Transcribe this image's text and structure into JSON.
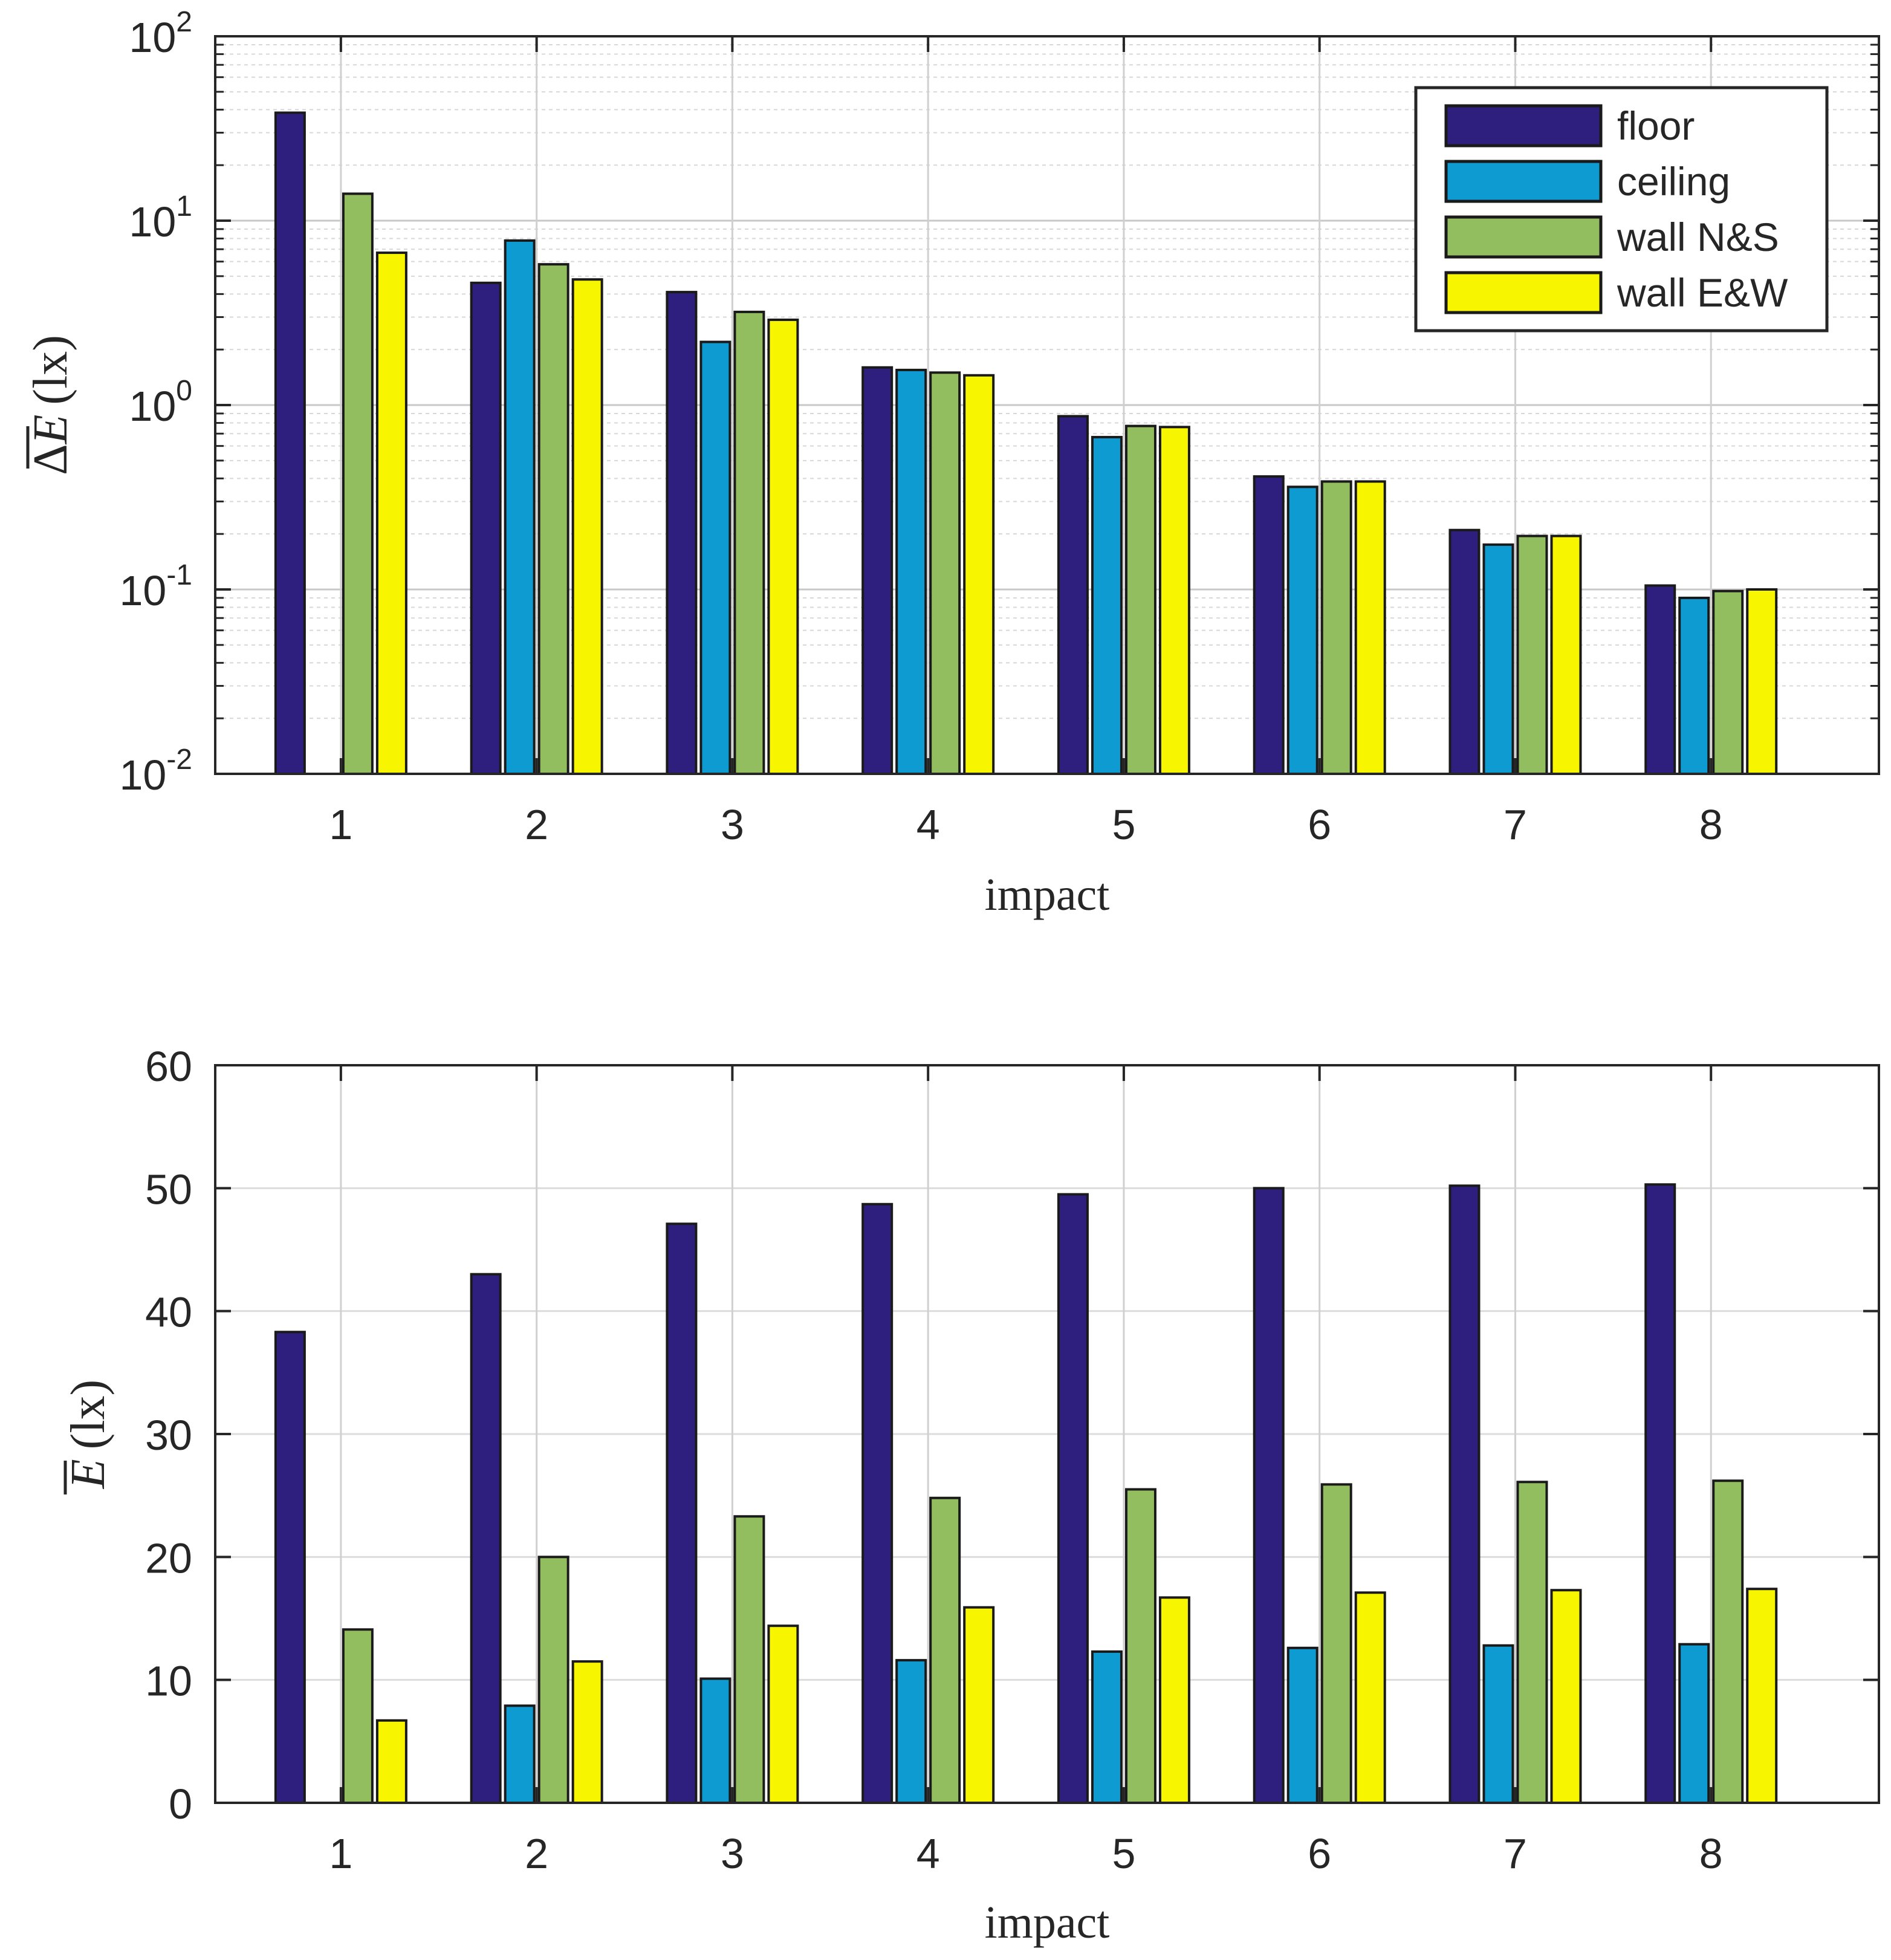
{
  "legend": {
    "entries": [
      "floor",
      "ceiling",
      "wall N&S",
      "wall E&W"
    ],
    "colors": [
      "#2e1f7e",
      "#0e9bd1",
      "#92be5f",
      "#f7f500"
    ]
  },
  "chart_data": [
    {
      "type": "bar",
      "scale": "log",
      "title": "",
      "xlabel": "impact",
      "ylabel_prefix": "Δ",
      "ylabel_symbol": "E",
      "ylabel_unit": "(lx)",
      "categories": [
        "1",
        "2",
        "3",
        "4",
        "5",
        "6",
        "7",
        "8"
      ],
      "ylim": [
        0.01,
        100
      ],
      "ytick_bases": [
        "10",
        "10",
        "10",
        "10",
        "10"
      ],
      "ytick_exponents": [
        "-2",
        "-1",
        "0",
        "1",
        "2"
      ],
      "grid": true,
      "legend_position": "top-right",
      "series": [
        {
          "name": "floor",
          "values": [
            38.5,
            4.6,
            4.1,
            1.6,
            0.87,
            0.41,
            0.21,
            0.105
          ]
        },
        {
          "name": "ceiling",
          "values": [
            0,
            7.8,
            2.2,
            1.55,
            0.67,
            0.36,
            0.175,
            0.09
          ]
        },
        {
          "name": "wall N&S",
          "values": [
            14.0,
            5.8,
            3.2,
            1.5,
            0.77,
            0.385,
            0.195,
            0.098
          ]
        },
        {
          "name": "wall E&W",
          "values": [
            6.7,
            4.8,
            2.9,
            1.45,
            0.76,
            0.385,
            0.195,
            0.1
          ]
        }
      ]
    },
    {
      "type": "bar",
      "scale": "linear",
      "title": "",
      "xlabel": "impact",
      "ylabel_prefix": "",
      "ylabel_symbol": "E",
      "ylabel_unit": "(lx)",
      "categories": [
        "1",
        "2",
        "3",
        "4",
        "5",
        "6",
        "7",
        "8"
      ],
      "ylim": [
        0,
        60
      ],
      "yticks": [
        "0",
        "10",
        "20",
        "30",
        "40",
        "50",
        "60"
      ],
      "grid": true,
      "series": [
        {
          "name": "floor",
          "values": [
            38.3,
            43.0,
            47.1,
            48.7,
            49.5,
            50.0,
            50.2,
            50.3
          ]
        },
        {
          "name": "ceiling",
          "values": [
            0,
            7.9,
            10.1,
            11.6,
            12.3,
            12.6,
            12.8,
            12.9
          ]
        },
        {
          "name": "wall N&S",
          "values": [
            14.1,
            20.0,
            23.3,
            24.8,
            25.5,
            25.9,
            26.1,
            26.2
          ]
        },
        {
          "name": "wall E&W",
          "values": [
            6.7,
            11.5,
            14.4,
            15.9,
            16.7,
            17.1,
            17.3,
            17.4
          ]
        }
      ]
    }
  ]
}
